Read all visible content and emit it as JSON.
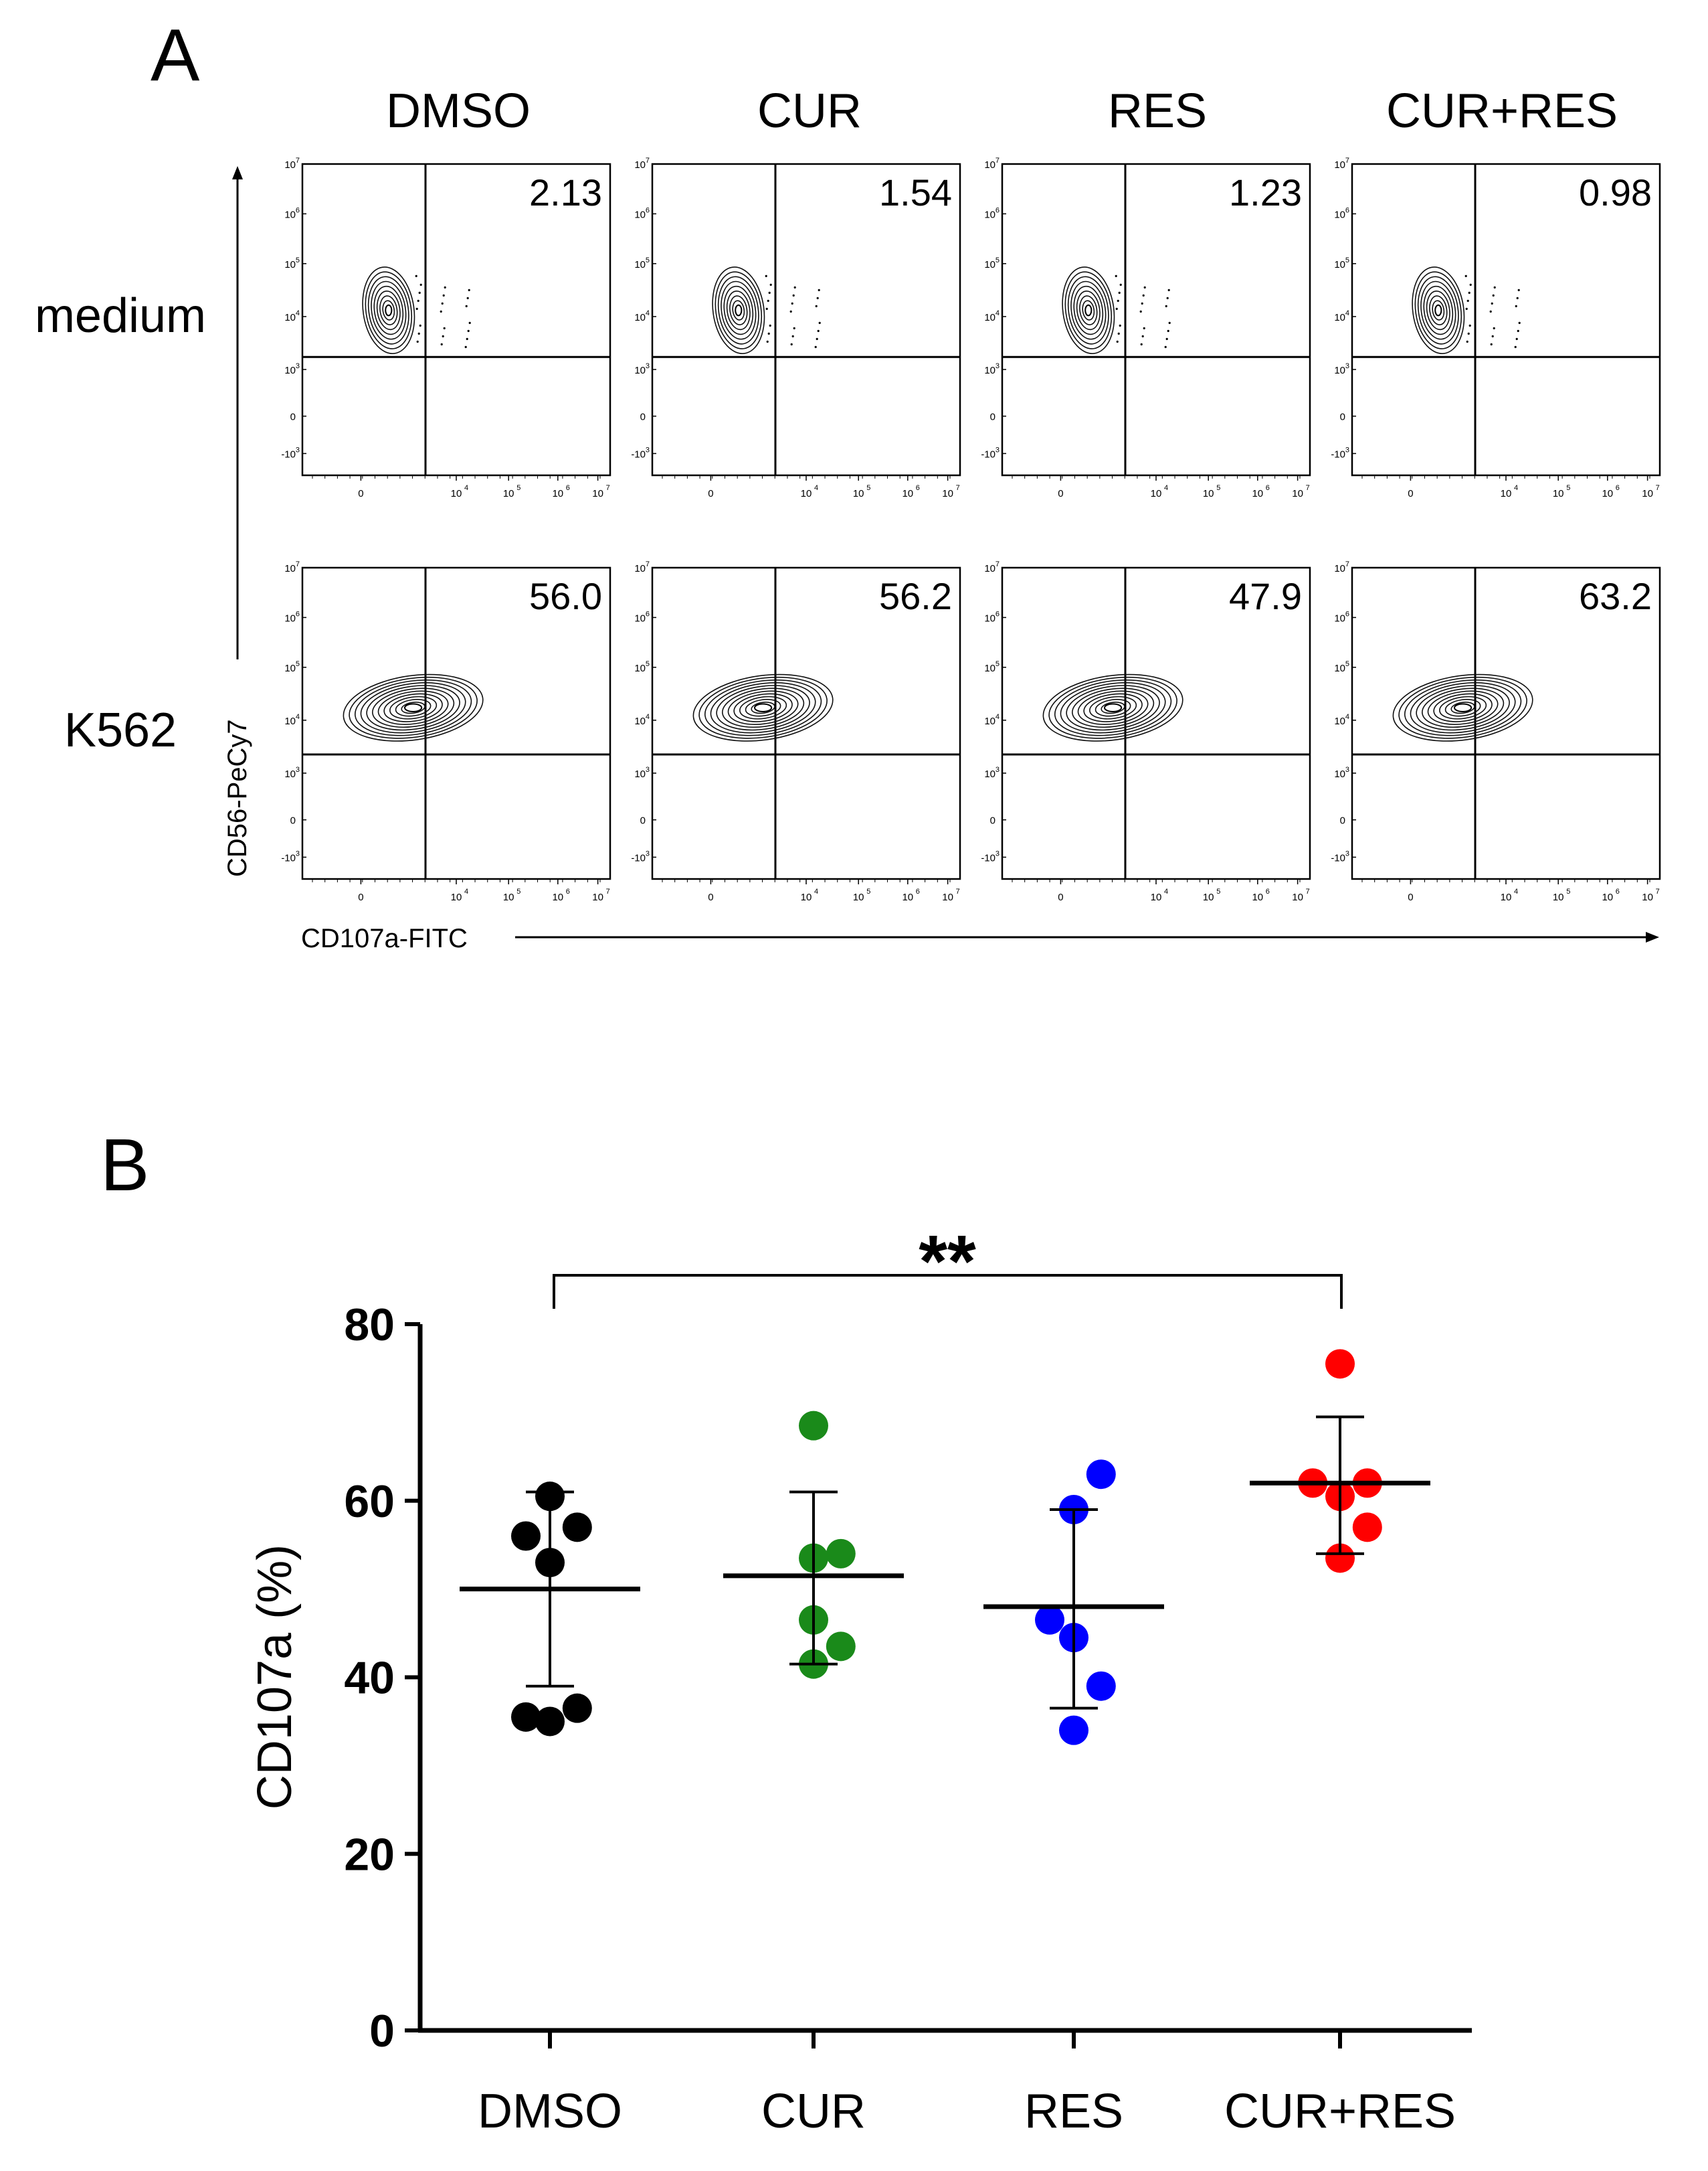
{
  "panel_a": {
    "label": "A",
    "column_titles": [
      "DMSO",
      "CUR",
      "RES",
      "CUR+RES"
    ],
    "row_titles": [
      "medium",
      "K562"
    ],
    "x_axis_label": "CD107a-FITC",
    "y_axis_label": "CD56-PeCy7",
    "tick_labels": {
      "y": [
        "10",
        "10",
        "10",
        "10",
        "10",
        "0",
        "-10"
      ],
      "y_exp": [
        "7",
        "6",
        "5",
        "4",
        "3",
        "",
        "3"
      ],
      "x": [
        "0",
        "10",
        "10",
        "10",
        "10"
      ],
      "x_exp": [
        "",
        "4",
        "5",
        "6",
        "7"
      ]
    },
    "quadrant_values": [
      [
        "2.13",
        "1.54",
        "1.23",
        "0.98"
      ],
      [
        "56.0",
        "56.2",
        "47.9",
        "63.2"
      ]
    ]
  },
  "chart_data": {
    "type": "scatter",
    "panel_label": "B",
    "title": "",
    "xlabel": "",
    "ylabel": "CD107a (%)",
    "ylim": [
      0,
      80
    ],
    "yticks": [
      "0",
      "20",
      "40",
      "60",
      "80"
    ],
    "categories": [
      "DMSO",
      "CUR",
      "RES",
      "CUR+RES"
    ],
    "colors": [
      "#000000",
      "#1a8a1a",
      "#0000ff",
      "#ff0000"
    ],
    "series": [
      {
        "name": "DMSO",
        "mean": 50,
        "sd_low": 39,
        "sd_high": 61,
        "points": [
          [
            -0.15,
            56
          ],
          [
            0,
            60.5
          ],
          [
            0,
            53
          ],
          [
            0.17,
            57
          ],
          [
            -0.15,
            35.5
          ],
          [
            0.17,
            36.5
          ],
          [
            0,
            35
          ]
        ]
      },
      {
        "name": "CUR",
        "mean": 51.5,
        "sd_low": 41.5,
        "sd_high": 61,
        "points": [
          [
            0,
            68.5
          ],
          [
            0,
            53.5
          ],
          [
            0.17,
            54
          ],
          [
            0,
            46.5
          ],
          [
            0.17,
            43.5
          ],
          [
            0,
            41.5
          ]
        ]
      },
      {
        "name": "RES",
        "mean": 48,
        "sd_low": 36.5,
        "sd_high": 59,
        "points": [
          [
            0.17,
            63
          ],
          [
            0,
            59
          ],
          [
            -0.15,
            46.5
          ],
          [
            0,
            44.5
          ],
          [
            0.17,
            39
          ],
          [
            0,
            34
          ]
        ]
      },
      {
        "name": "CUR+RES",
        "mean": 62,
        "sd_low": 54,
        "sd_high": 69.5,
        "points": [
          [
            0,
            75.5
          ],
          [
            -0.17,
            62
          ],
          [
            0,
            60.5
          ],
          [
            0.17,
            62
          ],
          [
            0.17,
            57
          ],
          [
            0,
            53.5
          ]
        ]
      }
    ],
    "significance": {
      "label": "**",
      "from": "DMSO",
      "to": "CUR+RES"
    }
  }
}
